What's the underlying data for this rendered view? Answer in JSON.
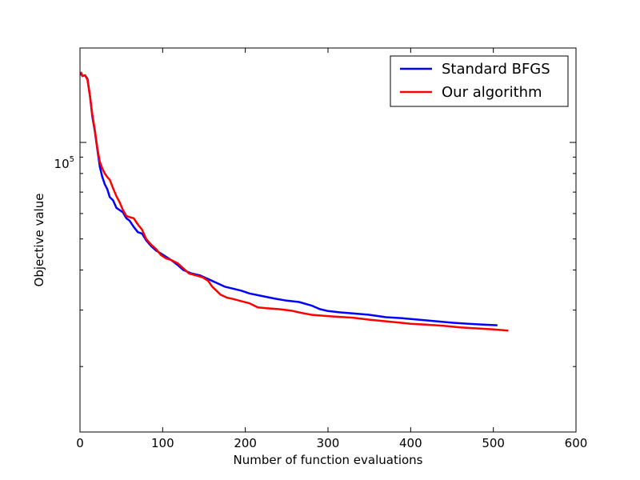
{
  "chart_data": {
    "type": "line",
    "title": "",
    "xlabel": "Number of function evaluations",
    "ylabel": "Objective value",
    "xscale": "linear",
    "yscale": "log",
    "xlim": [
      0,
      600
    ],
    "ylim": [
      12500,
      197000
    ],
    "grid": false,
    "legend_position": "top-right",
    "x_ticks": [
      0,
      100,
      200,
      300,
      400,
      500,
      600
    ],
    "x_tick_labels": [
      "0",
      "100",
      "200",
      "300",
      "400",
      "500",
      "600"
    ],
    "y_major_ticks": [
      100000
    ],
    "y_tick_label_base": "10",
    "y_tick_label_exp": "5",
    "y_minor_ticks": [
      20000,
      30000,
      40000,
      50000,
      60000,
      70000,
      80000,
      90000
    ],
    "series": [
      {
        "name": "Standard BFGS",
        "color": "#0000ff",
        "points": [
          [
            1,
            164000
          ],
          [
            3,
            161000
          ],
          [
            6,
            162000
          ],
          [
            9,
            158000
          ],
          [
            12,
            140000
          ],
          [
            15,
            120000
          ],
          [
            18,
            108000
          ],
          [
            21,
            95000
          ],
          [
            24,
            84000
          ],
          [
            27,
            78000
          ],
          [
            30,
            74000
          ],
          [
            33,
            71500
          ],
          [
            36,
            67500
          ],
          [
            40,
            66000
          ],
          [
            44,
            62500
          ],
          [
            48,
            61500
          ],
          [
            52,
            60500
          ],
          [
            56,
            58000
          ],
          [
            60,
            57000
          ],
          [
            65,
            54500
          ],
          [
            70,
            52500
          ],
          [
            75,
            52000
          ],
          [
            80,
            49500
          ],
          [
            86,
            47500
          ],
          [
            92,
            46000
          ],
          [
            98,
            45000
          ],
          [
            104,
            44000
          ],
          [
            110,
            43000
          ],
          [
            118,
            41500
          ],
          [
            125,
            40000
          ],
          [
            135,
            39000
          ],
          [
            145,
            38500
          ],
          [
            155,
            37500
          ],
          [
            165,
            36500
          ],
          [
            175,
            35500
          ],
          [
            185,
            35000
          ],
          [
            195,
            34500
          ],
          [
            205,
            33800
          ],
          [
            220,
            33200
          ],
          [
            235,
            32600
          ],
          [
            250,
            32100
          ],
          [
            265,
            31800
          ],
          [
            280,
            31000
          ],
          [
            290,
            30200
          ],
          [
            300,
            29800
          ],
          [
            315,
            29500
          ],
          [
            330,
            29300
          ],
          [
            350,
            29000
          ],
          [
            370,
            28500
          ],
          [
            390,
            28300
          ],
          [
            410,
            28000
          ],
          [
            430,
            27700
          ],
          [
            450,
            27400
          ],
          [
            470,
            27200
          ],
          [
            490,
            27000
          ],
          [
            505,
            26900
          ]
        ]
      },
      {
        "name": "Our algorithm",
        "color": "#ff0000",
        "points": [
          [
            1,
            166000
          ],
          [
            3,
            161000
          ],
          [
            6,
            162000
          ],
          [
            9,
            157000
          ],
          [
            12,
            140000
          ],
          [
            15,
            122000
          ],
          [
            18,
            109000
          ],
          [
            21,
            96000
          ],
          [
            24,
            87000
          ],
          [
            27,
            83000
          ],
          [
            30,
            80000
          ],
          [
            33,
            78000
          ],
          [
            36,
            76500
          ],
          [
            40,
            72000
          ],
          [
            44,
            68000
          ],
          [
            48,
            65000
          ],
          [
            52,
            61500
          ],
          [
            56,
            59000
          ],
          [
            60,
            58500
          ],
          [
            65,
            58000
          ],
          [
            70,
            55500
          ],
          [
            75,
            53500
          ],
          [
            80,
            50000
          ],
          [
            86,
            48000
          ],
          [
            92,
            46500
          ],
          [
            98,
            44500
          ],
          [
            104,
            43500
          ],
          [
            110,
            43000
          ],
          [
            118,
            42000
          ],
          [
            125,
            40500
          ],
          [
            132,
            39000
          ],
          [
            140,
            38500
          ],
          [
            148,
            38000
          ],
          [
            155,
            37000
          ],
          [
            160,
            35500
          ],
          [
            165,
            34500
          ],
          [
            170,
            33500
          ],
          [
            178,
            32800
          ],
          [
            185,
            32500
          ],
          [
            195,
            32000
          ],
          [
            205,
            31500
          ],
          [
            215,
            30600
          ],
          [
            225,
            30400
          ],
          [
            240,
            30200
          ],
          [
            255,
            29900
          ],
          [
            265,
            29500
          ],
          [
            280,
            29000
          ],
          [
            295,
            28800
          ],
          [
            310,
            28600
          ],
          [
            330,
            28400
          ],
          [
            350,
            28000
          ],
          [
            375,
            27600
          ],
          [
            400,
            27200
          ],
          [
            420,
            27000
          ],
          [
            440,
            26800
          ],
          [
            460,
            26500
          ],
          [
            480,
            26300
          ],
          [
            500,
            26100
          ],
          [
            518,
            25900
          ]
        ]
      }
    ]
  }
}
